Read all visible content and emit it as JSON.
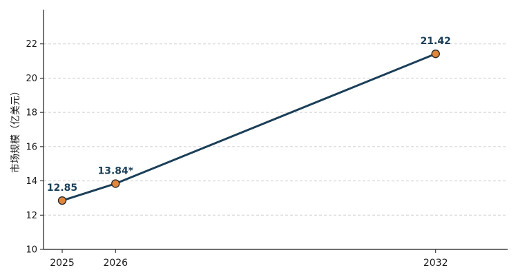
{
  "chart_data": {
    "type": "line",
    "x": [
      2025,
      2026,
      2032
    ],
    "series": [
      {
        "values": [
          12.85,
          13.84,
          21.42
        ],
        "labels": [
          "12.85",
          "13.84*",
          "21.42"
        ]
      }
    ],
    "title": "",
    "xlabel": "",
    "ylabel": "市场规模（亿美元）",
    "xticks": [
      "2025",
      "2026",
      "2032"
    ],
    "yticks": [
      "10",
      "12",
      "14",
      "16",
      "18",
      "20",
      "22"
    ],
    "ylim": [
      10,
      24
    ],
    "xlim": [
      2024.65,
      2033.35
    ],
    "grid": "horizontal-dashed",
    "legend": "none"
  },
  "colors": {
    "line": "#1b3f58",
    "marker_fill": "#e0873d",
    "marker_edge": "#2a2a2a",
    "data_label": "#1b3f58"
  }
}
